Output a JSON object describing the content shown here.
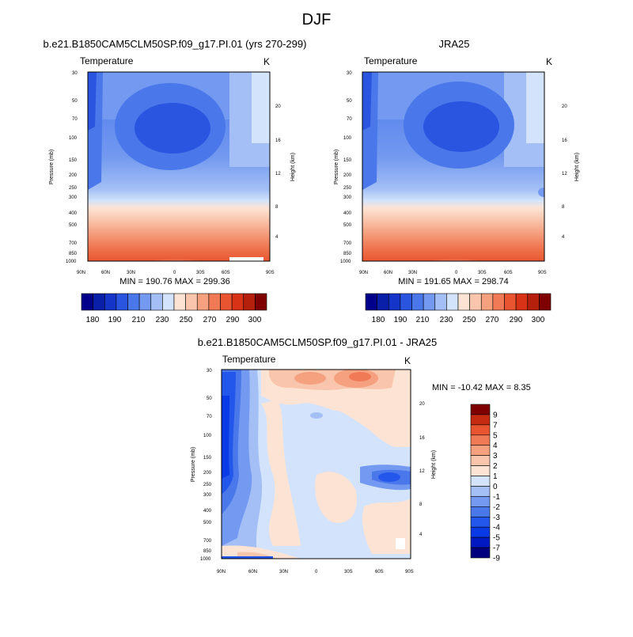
{
  "page_title": "DJF",
  "panels": {
    "model": {
      "case_title": "b.e21.B1850CAM5CLM50SP.f09_g17.PI.01 (yrs 270-299)",
      "variable": "Temperature",
      "units": "K",
      "stats": "MIN = 190.76   MAX = 299.36"
    },
    "obs": {
      "case_title": "JRA25",
      "variable": "Temperature",
      "units": "K",
      "stats": "MIN = 191.65   MAX = 298.74"
    },
    "diff": {
      "case_title": "b.e21.B1850CAM5CLM50SP.f09_g17.PI.01 - JRA25",
      "variable": "Temperature",
      "units": "K",
      "stats": "MIN = -10.42  MAX =   8.35"
    }
  },
  "axes": {
    "ylabel": "Pressure (mb)",
    "y2label": "Height (km)"
  },
  "colors": {
    "abs_scale": [
      "#00008b",
      "#0a1fa8",
      "#1535c8",
      "#2a55e0",
      "#4a78ea",
      "#7399f0",
      "#a3bff5",
      "#d3e3fb",
      "#fde3d3",
      "#f9c6ad",
      "#f5a07f",
      "#f07a55",
      "#e85530",
      "#d83316",
      "#b5200c",
      "#7f0000"
    ],
    "diff_scale": [
      "#00007f",
      "#0019c2",
      "#0a3ae5",
      "#2356ea",
      "#4a78ea",
      "#7399f0",
      "#a3bff5",
      "#d3e3fb",
      "#fde3d3",
      "#f9c6ad",
      "#f5a07f",
      "#f07a55",
      "#e85530",
      "#c42b10",
      "#7f0000"
    ]
  },
  "chart_data": [
    {
      "type": "heatmap",
      "title": "b.e21.B1850CAM5CLM50SP.f09_g17.PI.01 (yrs 270-299)",
      "variable": "Temperature",
      "units": "K",
      "x_ticks": [
        "90N",
        "60N",
        "30N",
        "0",
        "30S",
        "60S",
        "90S"
      ],
      "y_ticks": [
        "30",
        "50",
        "70",
        "100",
        "150",
        "200",
        "250",
        "300",
        "400",
        "500",
        "700",
        "850",
        "1000"
      ],
      "y_values_mb": [
        30,
        50,
        70,
        100,
        150,
        200,
        250,
        300,
        400,
        500,
        700,
        850,
        1000
      ],
      "y2_ticks": [
        "4",
        "8",
        "12",
        "16",
        "20"
      ],
      "ylabel": "Pressure (mb)",
      "y2label": "Height (km)",
      "colorbar_levels": [
        180,
        185,
        190,
        200,
        210,
        220,
        230,
        240,
        250,
        260,
        270,
        280,
        290,
        295,
        300
      ],
      "colorbar_labels": [
        "180",
        "190",
        "210",
        "230",
        "250",
        "270",
        "290",
        "300"
      ],
      "min": 190.76,
      "max": 299.36
    },
    {
      "type": "heatmap",
      "title": "JRA25",
      "variable": "Temperature",
      "units": "K",
      "x_ticks": [
        "90N",
        "60N",
        "30N",
        "0",
        "30S",
        "60S",
        "90S"
      ],
      "y_ticks": [
        "30",
        "50",
        "70",
        "100",
        "150",
        "200",
        "250",
        "300",
        "400",
        "500",
        "700",
        "850",
        "1000"
      ],
      "y_values_mb": [
        30,
        50,
        70,
        100,
        150,
        200,
        250,
        300,
        400,
        500,
        700,
        850,
        1000
      ],
      "y2_ticks": [
        "4",
        "8",
        "12",
        "16",
        "20"
      ],
      "ylabel": "Pressure (mb)",
      "y2label": "Height (km)",
      "colorbar_levels": [
        180,
        185,
        190,
        200,
        210,
        220,
        230,
        240,
        250,
        260,
        270,
        280,
        290,
        295,
        300
      ],
      "colorbar_labels": [
        "180",
        "190",
        "210",
        "230",
        "250",
        "270",
        "290",
        "300"
      ],
      "min": 191.65,
      "max": 298.74
    },
    {
      "type": "heatmap",
      "title": "b.e21.B1850CAM5CLM50SP.f09_g17.PI.01 - JRA25",
      "variable": "Temperature",
      "units": "K",
      "x_ticks": [
        "90N",
        "60N",
        "30N",
        "0",
        "30S",
        "60S",
        "90S"
      ],
      "y_ticks": [
        "30",
        "50",
        "70",
        "100",
        "150",
        "200",
        "250",
        "300",
        "400",
        "500",
        "700",
        "850",
        "1000"
      ],
      "y_values_mb": [
        30,
        50,
        70,
        100,
        150,
        200,
        250,
        300,
        400,
        500,
        700,
        850,
        1000
      ],
      "y2_ticks": [
        "4",
        "8",
        "12",
        "16",
        "20"
      ],
      "ylabel": "Pressure (mb)",
      "y2label": "Height (km)",
      "colorbar_labels": [
        "9",
        "7",
        "5",
        "4",
        "3",
        "2",
        "1",
        "0",
        "-1",
        "-2",
        "-3",
        "-4",
        "-5",
        "-7",
        "-9"
      ],
      "min": -10.42,
      "max": 8.35
    }
  ]
}
